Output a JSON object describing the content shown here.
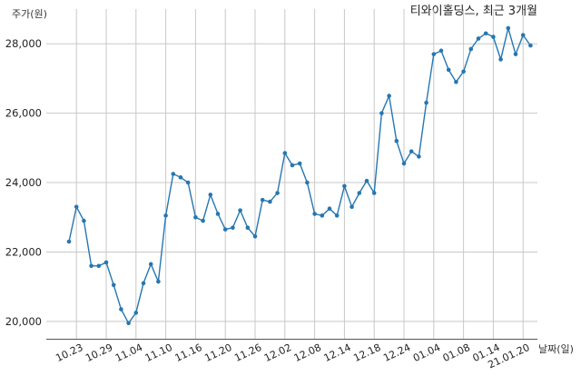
{
  "chart_data": {
    "type": "line",
    "title": "티와이홀딩스, 최근 3개월",
    "ylabel": "주가(원)",
    "xlabel": "날짜(일)",
    "ylim": [
      19500,
      29000
    ],
    "yticks": [
      20000,
      22000,
      24000,
      26000,
      28000
    ],
    "ytick_labels": [
      "20,000",
      "22,000",
      "24,000",
      "26,000",
      "28,000"
    ],
    "xtick_labels": [
      "10.23",
      "10.29",
      "11.04",
      "11.10",
      "11.16",
      "11.20",
      "11.26",
      "12.02",
      "12.08",
      "12.14",
      "12.18",
      "12.24",
      "01.04",
      "01.08",
      "01.14",
      "21.01.20"
    ],
    "xtick_index": [
      1,
      5,
      9,
      13,
      17,
      21,
      25,
      29,
      33,
      37,
      41,
      45,
      49,
      53,
      57,
      61
    ],
    "grid": true,
    "color": "#2677b0",
    "series": [
      {
        "values": [
          22300,
          23300,
          22900,
          21600,
          21600,
          21700,
          21050,
          20350,
          19950,
          20250,
          21100,
          21650,
          21150,
          23050,
          24250,
          24150,
          24000,
          23000,
          22900,
          23650,
          23100,
          22650,
          22700,
          23200,
          22700,
          22450,
          23500,
          23450,
          23700,
          24850,
          24500,
          24550,
          24000,
          23100,
          23050,
          23250,
          23050,
          23900,
          23300,
          23700,
          24050,
          23700,
          26000,
          26500,
          25200,
          24550,
          24900,
          24750,
          26300,
          27700,
          27800,
          27250,
          26900,
          27200,
          27850,
          28150,
          28300,
          28200,
          27550,
          28450,
          27700,
          28250,
          27950
        ]
      }
    ]
  }
}
